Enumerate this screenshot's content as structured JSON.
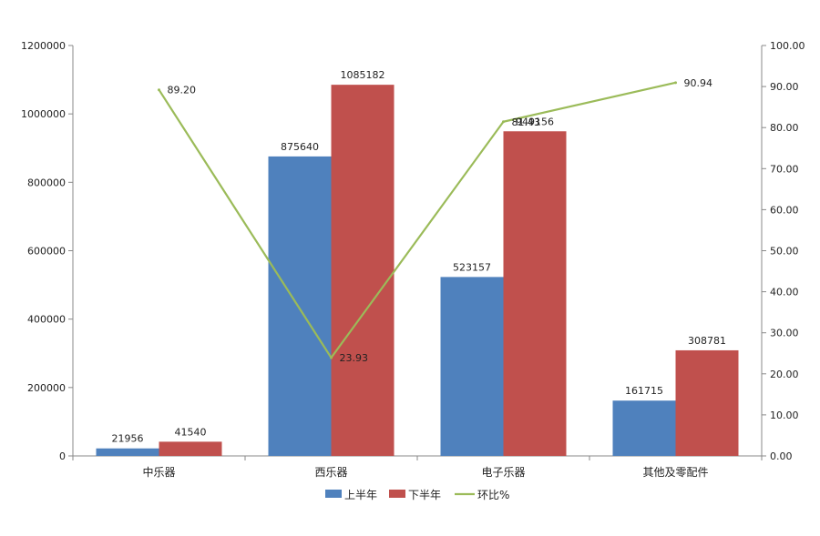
{
  "chart_data": {
    "type": "bar",
    "categories": [
      "中乐器",
      "西乐器",
      "电子乐器",
      "其他及零配件"
    ],
    "series": [
      {
        "name": "上半年",
        "type": "bar",
        "axis": "left",
        "color": "#4F81BD",
        "values": [
          21956,
          875640,
          523157,
          161715
        ]
      },
      {
        "name": "下半年",
        "type": "bar",
        "axis": "left",
        "color": "#C0504D",
        "values": [
          41540,
          1085182,
          949156,
          308781
        ]
      },
      {
        "name": "环比%",
        "type": "line",
        "axis": "right",
        "color": "#9BBB59",
        "values": [
          89.2,
          23.93,
          81.43,
          90.94
        ],
        "labels": [
          "89.20",
          "23.93",
          "81.43",
          "90.94"
        ]
      }
    ],
    "y_left": {
      "min": 0,
      "max": 1200000,
      "ticks": [
        0,
        200000,
        400000,
        600000,
        800000,
        1000000,
        1200000
      ],
      "tick_labels": [
        "0",
        "200000",
        "400000",
        "600000",
        "800000",
        "1000000",
        "1200000"
      ]
    },
    "y_right": {
      "min": 0,
      "max": 100,
      "ticks": [
        0,
        10,
        20,
        30,
        40,
        50,
        60,
        70,
        80,
        90,
        100
      ],
      "tick_labels": [
        "0.00",
        "10.00",
        "20.00",
        "30.00",
        "40.00",
        "50.00",
        "60.00",
        "70.00",
        "80.00",
        "90.00",
        "100.00"
      ]
    },
    "grid": false,
    "legend_position": "bottom-center"
  }
}
